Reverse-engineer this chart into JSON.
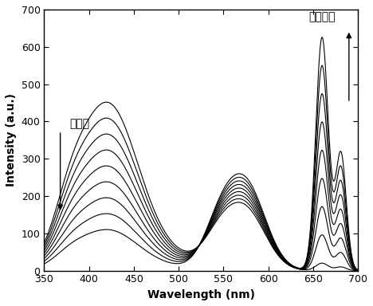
{
  "xlabel": "Wavelength (nm)",
  "ylabel": "Intensity (a.u.)",
  "xlim": [
    350,
    700
  ],
  "ylim": [
    0,
    700
  ],
  "xticks": [
    350,
    400,
    450,
    500,
    550,
    600,
    650,
    700
  ],
  "yticks": [
    0,
    100,
    200,
    300,
    400,
    500,
    600,
    700
  ],
  "annotation_left": "四环素",
  "annotation_right": "克伦特罗",
  "n_curves": 9,
  "background_color": "#ffffff",
  "curve_color": "#000000"
}
